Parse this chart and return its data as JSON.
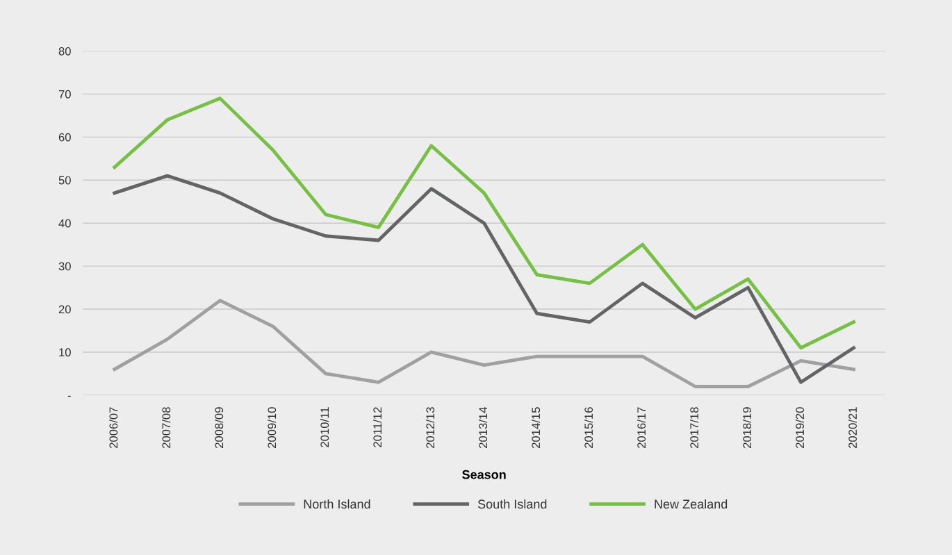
{
  "chart_data": {
    "type": "line",
    "xlabel": "Season",
    "categories": [
      "2006/07",
      "2007/08",
      "2008/09",
      "2009/10",
      "2010/11",
      "2011/12",
      "2012/13",
      "2013/14",
      "2014/15",
      "2015/16",
      "2016/17",
      "2017/18",
      "2018/19",
      "2019/20",
      "2020/21"
    ],
    "series": [
      {
        "name": "North Island",
        "color": "#a0a0a2",
        "values": [
          6,
          13,
          22,
          16,
          5,
          3,
          10,
          7,
          9,
          9,
          9,
          2,
          2,
          8,
          6
        ]
      },
      {
        "name": "South Island",
        "color": "#636466",
        "values": [
          47,
          51,
          47,
          41,
          37,
          36,
          48,
          40,
          19,
          17,
          26,
          18,
          25,
          3,
          11
        ]
      },
      {
        "name": "New Zealand",
        "color": "#76c043",
        "values": [
          53,
          64,
          69,
          57,
          42,
          39,
          58,
          47,
          28,
          26,
          35,
          20,
          27,
          11,
          17
        ]
      }
    ],
    "ylim": [
      0,
      80
    ],
    "yticks": [
      {
        "value": 0,
        "label": "-"
      },
      10,
      20,
      30,
      40,
      50,
      60,
      70,
      80
    ],
    "grid": "y",
    "legend": "bottom",
    "marker": "none",
    "line_style": "solid"
  }
}
